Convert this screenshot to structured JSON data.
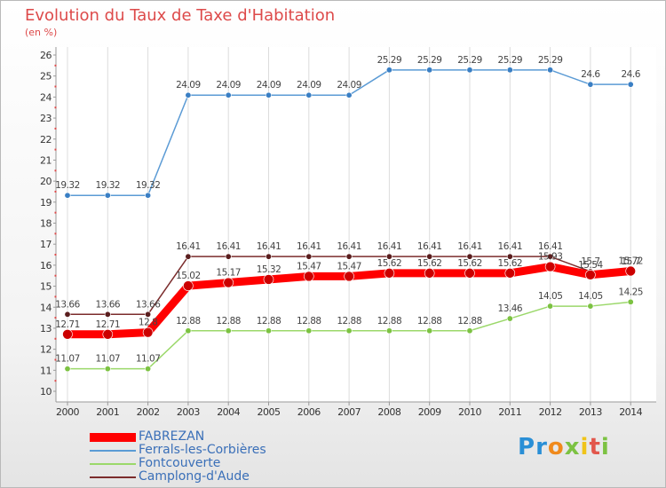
{
  "chart_data": {
    "type": "line",
    "title": "Evolution du Taux de Taxe d'Habitation",
    "subtitle": "(en %)",
    "categories": [
      "2000",
      "2001",
      "2002",
      "2003",
      "2004",
      "2005",
      "2006",
      "2007",
      "2008",
      "2009",
      "2010",
      "2011",
      "2012",
      "2013",
      "2014"
    ],
    "ylim": [
      10,
      26
    ],
    "yticks": [
      "10",
      "11",
      "12",
      "13",
      "14",
      "15",
      "16",
      "17",
      "18",
      "19",
      "20",
      "21",
      "22",
      "23",
      "24",
      "25",
      "26"
    ],
    "grid": "vertical",
    "legend_position": "bottom-left",
    "series": [
      {
        "name": "FABREZAN",
        "color": "#ff0000",
        "values": [
          12.71,
          12.71,
          12.8,
          15.02,
          15.17,
          15.32,
          15.47,
          15.47,
          15.62,
          15.62,
          15.62,
          15.62,
          15.93,
          15.54,
          15.72
        ],
        "labels": [
          "12.71",
          "12.71",
          "12.8",
          "15.02",
          "15.17",
          "15.32",
          "15.47",
          "15.47",
          "15.62",
          "15.62",
          "15.62",
          "15.62",
          "15.93",
          "15.54",
          "15.72"
        ]
      },
      {
        "name": "Ferrals-les-Corbières",
        "color": "#5b9bd5",
        "values": [
          19.32,
          19.32,
          19.32,
          24.09,
          24.09,
          24.09,
          24.09,
          24.09,
          25.29,
          25.29,
          25.29,
          25.29,
          25.29,
          24.6,
          24.6
        ],
        "labels": [
          "19.32",
          "19.32",
          "19.32",
          "24.09",
          "24.09",
          "24.09",
          "24.09",
          "24.09",
          "25.29",
          "25.29",
          "25.29",
          "25.29",
          "25.29",
          "24.6",
          "24.6"
        ]
      },
      {
        "name": "Fontcouverte",
        "color": "#9bd86a",
        "values": [
          11.07,
          11.07,
          11.07,
          12.88,
          12.88,
          12.88,
          12.88,
          12.88,
          12.88,
          12.88,
          12.88,
          13.46,
          14.05,
          14.05,
          14.25
        ],
        "labels": [
          "11.07",
          "11.07",
          "11.07",
          "12.88",
          "12.88",
          "12.88",
          "12.88",
          "12.88",
          "12.88",
          "12.88",
          "12.88",
          "13.46",
          "14.05",
          "14.05",
          "14.25"
        ]
      },
      {
        "name": "Camplong-d'Aude",
        "color": "#7b2c2c",
        "values": [
          13.66,
          13.66,
          13.66,
          16.41,
          16.41,
          16.41,
          16.41,
          16.41,
          16.41,
          16.41,
          16.41,
          16.41,
          16.41,
          15.7,
          15.7
        ],
        "labels": [
          "13.66",
          "13.66",
          "13.66",
          "16.41",
          "16.41",
          "16.41",
          "16.41",
          "16.41",
          "16.41",
          "16.41",
          "16.41",
          "16.41",
          "16.41",
          "15.7",
          "15.7"
        ]
      }
    ]
  },
  "legend": [
    "FABREZAN",
    "Ferrals-les-Corbières",
    "Fontcouverte",
    "Camplong-d'Aude"
  ],
  "logo": {
    "p": "P",
    "r": "r",
    "o": "o",
    "x": "x",
    "i": "i",
    "t": "t",
    "i2": "i"
  }
}
